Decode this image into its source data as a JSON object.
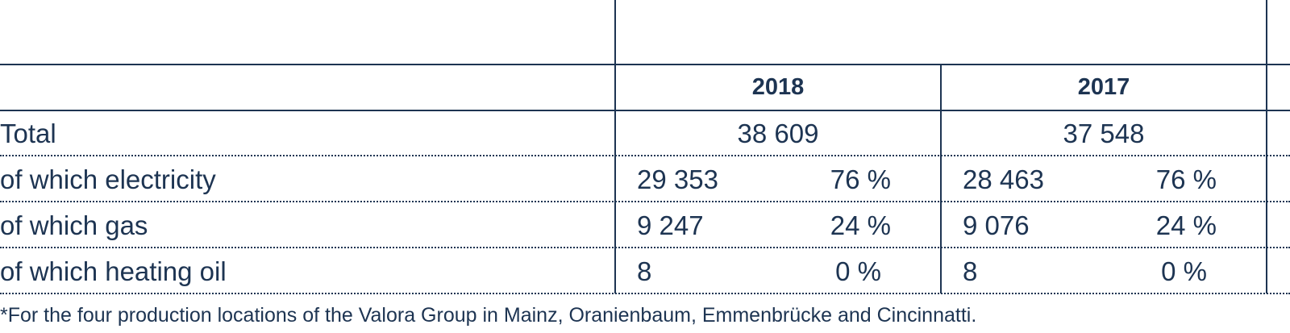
{
  "table": {
    "years": [
      "2018",
      "2017"
    ],
    "rows": [
      {
        "label": "Total",
        "total_2018": "38 609",
        "total_2017": "37 548"
      },
      {
        "label": "of which electricity",
        "value_2018": "29 353",
        "pct_2018": "76 %",
        "value_2017": "28 463",
        "pct_2017": "76 %"
      },
      {
        "label": "of which gas",
        "value_2018": "9 247",
        "pct_2018": "24 %",
        "value_2017": "9 076",
        "pct_2017": "24 %"
      },
      {
        "label": "of which heating oil",
        "value_2018": "8",
        "pct_2018": "0 %",
        "value_2017": "8",
        "pct_2017": "0 %"
      }
    ]
  },
  "footnote": "*For the four production locations of the Valora Group in Mainz, Oranienbaum, Emmenbrücke and Cincinnatti."
}
